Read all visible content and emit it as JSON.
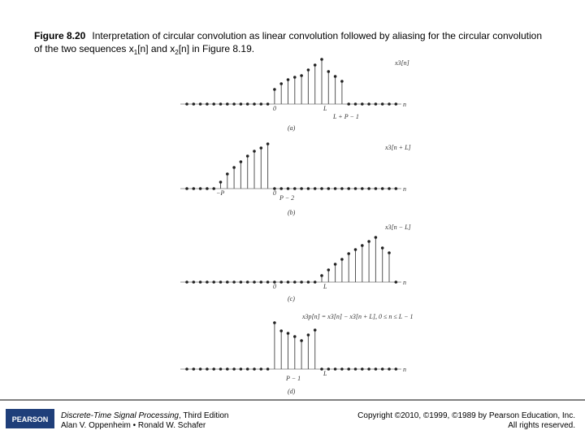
{
  "caption": {
    "label": "Figure 8.20",
    "text": "Interpretation of circular convolution as linear convolution followed by aliasing for the circular convolution",
    "line2": [
      "of the two sequences x",
      "1",
      "[n] and x",
      "2",
      "[n] in Figure 8.19."
    ]
  },
  "panels": [
    {
      "signal": "x3[n]",
      "ticks": [
        "0",
        "L",
        "L + P − 1"
      ],
      "n_label": "n",
      "caption": "(a)",
      "values": [
        0,
        0,
        0,
        0,
        0,
        0,
        0,
        0,
        0,
        0,
        0,
        0,
        0,
        18,
        25,
        30,
        33,
        35,
        42,
        48,
        55,
        40,
        34,
        28,
        0,
        0,
        0,
        0,
        0,
        0,
        0,
        0
      ]
    },
    {
      "signal": "x3[n + L]",
      "ticks": [
        "−P",
        "0",
        "P − 2"
      ],
      "n_label": "n",
      "caption": "(b)",
      "values": [
        0,
        0,
        0,
        0,
        0,
        8,
        18,
        26,
        33,
        40,
        46,
        50,
        55,
        0,
        0,
        0,
        0,
        0,
        0,
        0,
        0,
        0,
        0,
        0,
        0,
        0,
        0,
        0,
        0,
        0,
        0,
        0
      ]
    },
    {
      "signal": "x3[n − L]",
      "ticks": [
        "0",
        "L"
      ],
      "n_label": "n",
      "caption": "(c)",
      "values": [
        0,
        0,
        0,
        0,
        0,
        0,
        0,
        0,
        0,
        0,
        0,
        0,
        0,
        0,
        0,
        0,
        0,
        0,
        0,
        0,
        8,
        15,
        22,
        28,
        35,
        40,
        45,
        50,
        55,
        42,
        36,
        0
      ]
    },
    {
      "signal": "x3p[n] = x3[n] − x3[n + L], 0 ≤ n ≤ L − 1",
      "ticks": [
        "P − 1",
        "L"
      ],
      "n_label": "n",
      "caption": "(d)",
      "values": [
        0,
        0,
        0,
        0,
        0,
        0,
        0,
        0,
        0,
        0,
        0,
        0,
        0,
        57,
        47,
        44,
        40,
        35,
        42,
        48,
        0,
        0,
        0,
        0,
        0,
        0,
        0,
        0,
        0,
        0,
        0,
        0
      ]
    }
  ],
  "footer": {
    "logo": "PEARSON",
    "book_title": "Discrete-Time Signal Processing",
    "edition": ", Third Edition",
    "authors": "Alan V. Oppenheim • Ronald W. Schafer",
    "copyright": "Copyright ©2010, ©1999, ©1989 by Pearson Education, Inc.",
    "rights": "All rights reserved."
  }
}
